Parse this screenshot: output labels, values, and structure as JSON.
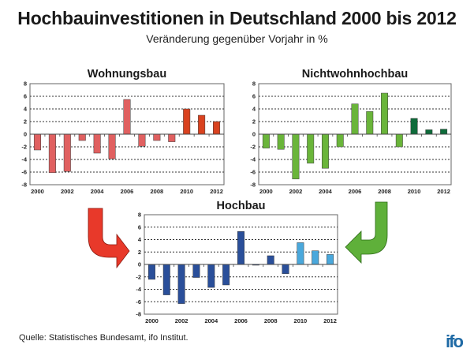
{
  "header": {
    "title": "Hochbauinvestitionen in Deutschland 2000 bis 2012",
    "subtitle": "Veränderung gegenüber Vorjahr in %"
  },
  "footer": {
    "source": "Quelle: Statistisches Bundesamt, ifo Institut.",
    "logo": "ifo"
  },
  "arrows": {
    "left": {
      "color": "#e8392a",
      "direction": "curved-down-right"
    },
    "right": {
      "color": "#5fb03a",
      "direction": "curved-down-left"
    }
  },
  "chart_data": [
    {
      "id": "wohnungsbau",
      "type": "bar",
      "title": "Wohnungsbau",
      "categories": [
        "2000",
        "2001",
        "2002",
        "2003",
        "2004",
        "2005",
        "2006",
        "2007",
        "2008",
        "2009",
        "2010",
        "2011",
        "2012"
      ],
      "x_tick_labels": [
        "2000",
        "2002",
        "2004",
        "2006",
        "2008",
        "2010",
        "2012"
      ],
      "values": [
        -2.5,
        -6.1,
        -5.9,
        -1.0,
        -3.0,
        -3.9,
        5.5,
        -1.9,
        -1.0,
        -1.2,
        4.0,
        3.0,
        2.0
      ],
      "forecast_from": "2010",
      "colors": {
        "actual": "#e06060",
        "forecast": "#d9421f"
      },
      "ylim": [
        -8,
        8
      ],
      "y_ticks": [
        8,
        6,
        4,
        2,
        0,
        -2,
        -4,
        -6,
        -8
      ],
      "grid": true,
      "xlabel": "",
      "ylabel": ""
    },
    {
      "id": "nichtwohnhochbau",
      "type": "bar",
      "title": "Nichtwohnhochbau",
      "categories": [
        "2000",
        "2001",
        "2002",
        "2003",
        "2004",
        "2005",
        "2006",
        "2007",
        "2008",
        "2009",
        "2010",
        "2011",
        "2012"
      ],
      "x_tick_labels": [
        "2000",
        "2002",
        "2004",
        "2006",
        "2008",
        "2010",
        "2012"
      ],
      "values": [
        -2.2,
        -2.4,
        -7.1,
        -4.6,
        -5.4,
        -2.0,
        4.8,
        3.6,
        6.5,
        -2.0,
        2.5,
        0.7,
        0.8
      ],
      "forecast_from": "2010",
      "colors": {
        "actual": "#6ab53a",
        "forecast": "#0e6b3a"
      },
      "ylim": [
        -8,
        8
      ],
      "y_ticks": [
        8,
        6,
        4,
        2,
        0,
        -2,
        -4,
        -6,
        -8
      ],
      "grid": true,
      "xlabel": "",
      "ylabel": ""
    },
    {
      "id": "hochbau",
      "type": "bar",
      "title": "Hochbau",
      "categories": [
        "2000",
        "2001",
        "2002",
        "2003",
        "2004",
        "2005",
        "2006",
        "2007",
        "2008",
        "2009",
        "2010",
        "2011",
        "2012"
      ],
      "x_tick_labels": [
        "2000",
        "2002",
        "2004",
        "2006",
        "2008",
        "2010",
        "2012"
      ],
      "values": [
        -2.4,
        -4.9,
        -6.3,
        -2.1,
        -3.7,
        -3.3,
        5.3,
        -0.1,
        1.4,
        -1.5,
        3.5,
        2.2,
        1.6
      ],
      "forecast_from": "2010",
      "colors": {
        "actual": "#2a4f9a",
        "forecast": "#4aa8dc"
      },
      "ylim": [
        -8,
        8
      ],
      "y_ticks": [
        8,
        6,
        4,
        2,
        0,
        -2,
        -4,
        -6,
        -8
      ],
      "grid": true,
      "xlabel": "",
      "ylabel": ""
    }
  ]
}
